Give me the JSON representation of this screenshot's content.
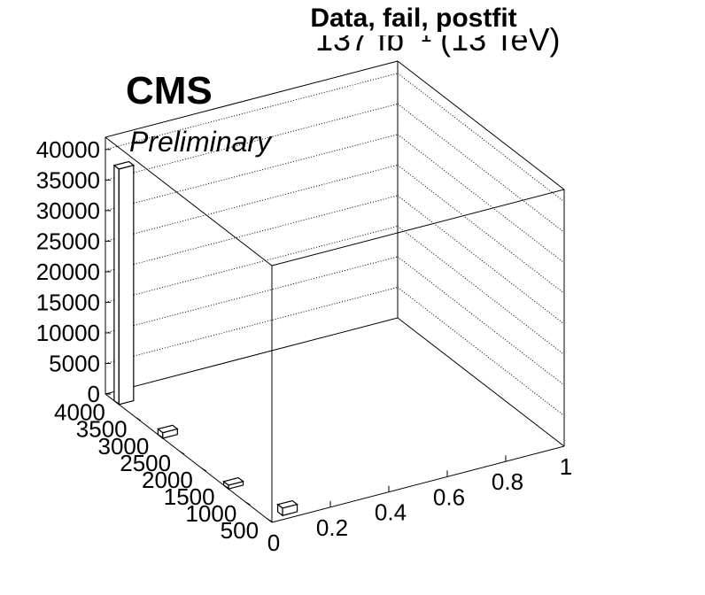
{
  "header": {
    "lumi_label": "137 fb⁻¹ (13 TeV)",
    "title": "Data, fail, postfit",
    "experiment": "CMS",
    "status": "Preliminary"
  },
  "chart_data": {
    "type": "lego",
    "title": "Data, fail, postfit",
    "z_axis": {
      "ticks": [
        0,
        5000,
        10000,
        15000,
        20000,
        25000,
        30000,
        35000,
        40000
      ],
      "range": [
        0,
        42000
      ]
    },
    "y_axis": {
      "ticks": [
        500,
        1000,
        1500,
        2000,
        2500,
        3000,
        3500,
        4000
      ],
      "range": [
        400,
        4200
      ]
    },
    "x_axis": {
      "ticks": [
        0,
        0.2,
        0.4,
        0.6,
        0.8,
        1
      ],
      "range": [
        0,
        1
      ]
    },
    "bars": [
      {
        "x": 0.0,
        "y": 4000,
        "value": 38500
      },
      {
        "x": 0.0,
        "y": 3000,
        "value": 900
      },
      {
        "x": 0.0,
        "y": 1500,
        "value": 600
      },
      {
        "x": 0.05,
        "y": 600,
        "value": 1200
      }
    ],
    "grid": true,
    "colors": {
      "frame": "#000000",
      "bar_fill": "#ffffff"
    }
  }
}
